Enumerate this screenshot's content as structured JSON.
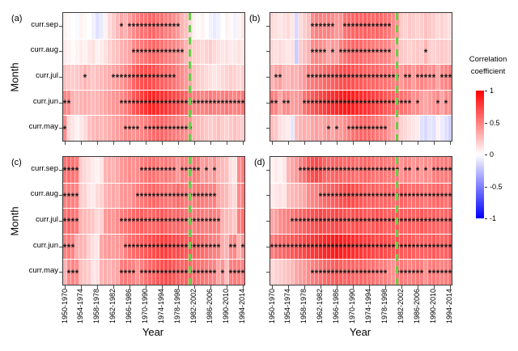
{
  "chart_data": {
    "type": "heatmap",
    "xlabel": "Year",
    "ylabel": "Month",
    "y_categories": [
      "curr.sep",
      "curr.aug",
      "curr.jul",
      "curr.jun",
      "curr.may"
    ],
    "n_cols": 45,
    "x_tick_cols": [
      0,
      4,
      8,
      12,
      16,
      20,
      24,
      28,
      32,
      36,
      40,
      44
    ],
    "x_tick_labels": [
      "1950-1970",
      "1954-1974",
      "1958-1978",
      "1962-1982",
      "1966-1986",
      "1970-1990",
      "1974-1994",
      "1978-1998",
      "1982-2002",
      "1986-2006",
      "1990-2010",
      "1994-2014"
    ],
    "value_range": [
      -1,
      1
    ],
    "sig_marker": "*",
    "highlight_line": {
      "col": 31.5,
      "color": "#67CE48",
      "style": "dashed"
    },
    "colorbar": {
      "title_line1": "Correlation",
      "title_line2": "coefficient",
      "tick_labels": [
        "1",
        "0.5",
        "0",
        "-0.5",
        "-1"
      ],
      "tick_values": [
        1,
        0.5,
        0,
        -0.5,
        -1
      ],
      "top_color": "#FF0000",
      "mid_color": "#FFFFFF",
      "bottom_color": "#0000FF"
    },
    "panels": [
      {
        "label": "(a)",
        "rows": [
          [
            0.05,
            0.02,
            0.0,
            -0.02,
            0.05,
            0.02,
            0.0,
            -0.05,
            -0.12,
            -0.08,
            0.05,
            0.15,
            0.2,
            0.28,
            0.35,
            0.3,
            0.38,
            0.45,
            0.5,
            0.55,
            0.55,
            0.6,
            0.6,
            0.55,
            0.55,
            0.5,
            0.5,
            0.45,
            0.4,
            0.3,
            0.25,
            0.15,
            0.05,
            0.02,
            0.05,
            0.0,
            -0.05,
            -0.08,
            -0.05,
            0.0,
            0.05,
            0.02,
            -0.05,
            0.05,
            0.1
          ],
          [
            0.08,
            0.05,
            0.02,
            0.05,
            0.08,
            0.05,
            0.1,
            0.12,
            0.05,
            0.08,
            0.12,
            0.18,
            0.22,
            0.25,
            0.3,
            0.32,
            0.35,
            0.45,
            0.5,
            0.52,
            0.55,
            0.58,
            0.6,
            0.58,
            0.55,
            0.52,
            0.5,
            0.48,
            0.45,
            0.38,
            0.3,
            0.25,
            0.2,
            0.18,
            0.15,
            0.18,
            0.2,
            0.15,
            0.12,
            0.1,
            0.12,
            0.08,
            0.1,
            0.12,
            0.1
          ],
          [
            0.25,
            0.22,
            0.2,
            0.22,
            0.25,
            0.3,
            0.25,
            0.22,
            0.25,
            0.28,
            0.3,
            0.32,
            0.35,
            0.38,
            0.4,
            0.45,
            0.5,
            0.6,
            0.65,
            0.68,
            0.7,
            0.7,
            0.68,
            0.65,
            0.62,
            0.6,
            0.58,
            0.55,
            0.5,
            0.45,
            0.4,
            0.35,
            0.25,
            0.2,
            0.18,
            0.15,
            0.12,
            0.1,
            0.12,
            0.15,
            0.18,
            0.2,
            0.18,
            0.15,
            0.18
          ],
          [
            0.48,
            0.45,
            0.3,
            0.28,
            0.3,
            0.32,
            0.3,
            0.28,
            0.3,
            0.32,
            0.35,
            0.38,
            0.4,
            0.42,
            0.45,
            0.5,
            0.55,
            0.65,
            0.7,
            0.75,
            0.8,
            0.85,
            0.85,
            0.82,
            0.8,
            0.78,
            0.75,
            0.72,
            0.7,
            0.65,
            0.6,
            0.55,
            0.5,
            0.5,
            0.48,
            0.5,
            0.52,
            0.5,
            0.48,
            0.5,
            0.52,
            0.5,
            0.48,
            0.5,
            0.52
          ],
          [
            0.45,
            0.15,
            0.1,
            0.05,
            0.1,
            0.15,
            0.25,
            0.28,
            0.3,
            0.28,
            0.3,
            0.32,
            0.35,
            0.38,
            0.4,
            0.45,
            0.45,
            0.42,
            0.45,
            0.48,
            0.5,
            0.55,
            0.58,
            0.6,
            0.6,
            0.58,
            0.55,
            0.52,
            0.5,
            0.48,
            0.45,
            0.42,
            0.3,
            0.28,
            0.25,
            0.22,
            0.2,
            0.22,
            0.25,
            0.2,
            0.18,
            0.22,
            0.25,
            0.22,
            0.2
          ]
        ],
        "sig_stars": [
          "14,16-28",
          "17-29",
          "5,12-27",
          "0-1,14-44",
          "0,15-18,20-31"
        ]
      },
      {
        "label": "(b)",
        "rows": [
          [
            0.15,
            0.12,
            0.1,
            0.12,
            0.15,
            0.1,
            -0.15,
            0.15,
            0.2,
            0.25,
            0.45,
            0.5,
            0.5,
            0.48,
            0.5,
            0.45,
            0.4,
            0.42,
            0.55,
            0.58,
            0.6,
            0.62,
            0.6,
            0.62,
            0.6,
            0.58,
            0.6,
            0.58,
            0.55,
            0.52,
            0.45,
            0.4,
            0.2,
            0.18,
            0.22,
            0.2,
            0.18,
            0.2,
            0.25,
            0.22,
            0.2,
            0.15,
            0.18,
            0.15,
            0.12
          ],
          [
            0.15,
            0.12,
            0.15,
            0.12,
            0.1,
            0.12,
            -0.2,
            0.2,
            0.25,
            0.3,
            0.45,
            0.48,
            0.45,
            0.42,
            0.35,
            0.4,
            0.38,
            0.5,
            0.55,
            0.58,
            0.6,
            0.6,
            0.58,
            0.55,
            0.55,
            0.52,
            0.5,
            0.5,
            0.48,
            0.45,
            0.38,
            0.32,
            0.22,
            0.2,
            0.18,
            0.2,
            0.22,
            0.2,
            0.3,
            0.2,
            0.18,
            0.2,
            0.22,
            0.2,
            0.18
          ],
          [
            0.3,
            0.35,
            0.38,
            0.3,
            0.28,
            0.32,
            0.3,
            0.35,
            0.4,
            0.5,
            0.52,
            0.55,
            0.55,
            0.58,
            0.6,
            0.62,
            0.65,
            0.68,
            0.7,
            0.7,
            0.68,
            0.65,
            0.65,
            0.62,
            0.6,
            0.6,
            0.58,
            0.55,
            0.55,
            0.52,
            0.5,
            0.5,
            0.4,
            0.45,
            0.45,
            0.38,
            0.45,
            0.48,
            0.45,
            0.42,
            0.45,
            0.35,
            0.45,
            0.48,
            0.5
          ],
          [
            0.5,
            0.48,
            0.35,
            0.45,
            0.45,
            0.38,
            0.4,
            0.42,
            0.55,
            0.6,
            0.65,
            0.7,
            0.72,
            0.75,
            0.8,
            0.82,
            0.85,
            0.88,
            0.9,
            0.9,
            0.88,
            0.85,
            0.82,
            0.8,
            0.78,
            0.75,
            0.72,
            0.7,
            0.65,
            0.62,
            0.6,
            0.58,
            0.55,
            0.52,
            0.5,
            0.42,
            0.45,
            0.38,
            0.35,
            0.38,
            0.42,
            0.45,
            0.35,
            0.45,
            0.42
          ],
          [
            0.25,
            0.22,
            0.12,
            0.1,
            0.08,
            -0.1,
            0.25,
            0.3,
            0.32,
            0.3,
            0.35,
            0.38,
            0.35,
            0.38,
            0.42,
            0.35,
            0.42,
            0.4,
            0.45,
            0.5,
            0.55,
            0.58,
            0.6,
            0.6,
            0.58,
            0.55,
            0.52,
            0.5,
            0.48,
            0.4,
            0.35,
            0.3,
            0.18,
            0.15,
            0.12,
            0.1,
            0.08,
            -0.12,
            -0.15,
            -0.1,
            -0.12,
            0.05,
            -0.08,
            -0.12,
            -0.18
          ]
        ],
        "sig_stars": [
          "10-15,18-29",
          "10-13,15,17-29,38",
          "1-2,9-31,33-34,36-40,42-44",
          "0-1,3-4,8-34,36,41,43",
          "14,16,19-28"
        ]
      },
      {
        "label": "(c)",
        "rows": [
          [
            0.55,
            0.58,
            0.55,
            0.52,
            0.2,
            0.15,
            0.12,
            0.08,
            0.05,
            0.1,
            0.3,
            0.32,
            0.3,
            0.35,
            0.4,
            0.42,
            0.45,
            0.42,
            0.45,
            0.5,
            0.52,
            0.55,
            0.55,
            0.52,
            0.5,
            0.52,
            0.5,
            0.48,
            0.4,
            0.5,
            0.48,
            0.5,
            0.52,
            0.5,
            0.38,
            0.42,
            0.35,
            0.42,
            0.3,
            0.28,
            0.25,
            0.12,
            0.1,
            0.45,
            0.5
          ],
          [
            0.5,
            0.52,
            0.5,
            0.48,
            0.2,
            0.18,
            0.1,
            0.08,
            0.15,
            0.18,
            0.3,
            0.32,
            0.35,
            0.32,
            0.4,
            0.42,
            0.4,
            0.45,
            0.5,
            0.52,
            0.55,
            0.58,
            0.6,
            0.58,
            0.55,
            0.55,
            0.52,
            0.55,
            0.58,
            0.55,
            0.52,
            0.5,
            0.52,
            0.55,
            0.52,
            0.5,
            0.48,
            0.5,
            0.35,
            0.3,
            0.28,
            0.18,
            0.15,
            0.45,
            0.5
          ],
          [
            0.55,
            0.58,
            0.55,
            0.52,
            0.3,
            0.28,
            0.25,
            0.22,
            0.15,
            0.18,
            0.4,
            0.42,
            0.4,
            0.45,
            0.5,
            0.52,
            0.55,
            0.58,
            0.6,
            0.62,
            0.6,
            0.58,
            0.6,
            0.62,
            0.65,
            0.62,
            0.6,
            0.58,
            0.6,
            0.58,
            0.55,
            0.55,
            0.52,
            0.55,
            0.52,
            0.5,
            0.52,
            0.5,
            0.48,
            0.3,
            0.28,
            0.25,
            0.22,
            0.5,
            0.55
          ],
          [
            0.5,
            0.52,
            0.48,
            0.32,
            0.3,
            0.28,
            0.18,
            0.12,
            0.1,
            0.35,
            0.38,
            0.4,
            0.38,
            0.4,
            0.42,
            0.5,
            0.55,
            0.58,
            0.6,
            0.62,
            0.65,
            0.68,
            0.7,
            0.72,
            0.75,
            0.75,
            0.72,
            0.7,
            0.7,
            0.68,
            0.65,
            0.65,
            0.62,
            0.6,
            0.58,
            0.55,
            0.52,
            0.5,
            0.48,
            0.32,
            0.3,
            0.45,
            0.48,
            0.3,
            0.42
          ],
          [
            0.3,
            0.45,
            0.48,
            0.45,
            0.25,
            0.22,
            0.2,
            0.1,
            0.12,
            0.3,
            0.32,
            0.3,
            0.32,
            0.35,
            0.5,
            0.52,
            0.5,
            0.48,
            0.42,
            0.5,
            0.55,
            0.58,
            0.6,
            0.65,
            0.68,
            0.7,
            0.68,
            0.65,
            0.62,
            0.6,
            0.62,
            0.6,
            0.58,
            0.55,
            0.55,
            0.52,
            0.5,
            0.48,
            0.35,
            0.42,
            0.25,
            0.5,
            0.52,
            0.5,
            0.48
          ]
        ],
        "sig_stars": [
          "0-3,19-27,29-33,35,37",
          "0-3,18-37",
          "0-3,14-38",
          "0-2,15-38,41-42,44",
          "1-3,14-17,19-37,39,41-44"
        ]
      },
      {
        "label": "(d)",
        "rows": [
          [
            0.05,
            0.08,
            0.05,
            0.1,
            0.3,
            0.35,
            0.4,
            0.5,
            0.55,
            0.65,
            0.7,
            0.72,
            0.68,
            0.6,
            0.58,
            0.6,
            0.62,
            0.6,
            0.58,
            0.6,
            0.58,
            0.55,
            0.58,
            0.6,
            0.58,
            0.55,
            0.52,
            0.55,
            0.52,
            0.5,
            0.52,
            0.5,
            0.42,
            0.48,
            0.45,
            0.4,
            0.45,
            0.4,
            0.45,
            0.42,
            0.5,
            0.52,
            0.5,
            0.52,
            0.5
          ],
          [
            0.08,
            0.1,
            0.12,
            0.1,
            0.25,
            0.28,
            0.3,
            0.32,
            0.35,
            0.45,
            0.48,
            0.5,
            0.55,
            0.58,
            0.6,
            0.62,
            0.65,
            0.68,
            0.7,
            0.72,
            0.7,
            0.68,
            0.65,
            0.62,
            0.6,
            0.62,
            0.6,
            0.58,
            0.6,
            0.58,
            0.56,
            0.58,
            0.6,
            0.58,
            0.55,
            0.56,
            0.58,
            0.55,
            0.52,
            0.55,
            0.58,
            0.6,
            0.58,
            0.55,
            0.58
          ],
          [
            0.35,
            0.38,
            0.45,
            0.48,
            0.5,
            0.52,
            0.58,
            0.6,
            0.62,
            0.65,
            0.68,
            0.7,
            0.72,
            0.7,
            0.68,
            0.7,
            0.72,
            0.7,
            0.68,
            0.65,
            0.68,
            0.7,
            0.68,
            0.65,
            0.62,
            0.65,
            0.68,
            0.65,
            0.62,
            0.6,
            0.62,
            0.65,
            0.62,
            0.6,
            0.62,
            0.6,
            0.62,
            0.65,
            0.62,
            0.6,
            0.62,
            0.6,
            0.58,
            0.6,
            0.62
          ],
          [
            0.5,
            0.55,
            0.58,
            0.6,
            0.62,
            0.65,
            0.68,
            0.7,
            0.72,
            0.75,
            0.78,
            0.8,
            0.82,
            0.85,
            0.85,
            0.88,
            0.9,
            0.88,
            0.85,
            0.85,
            0.82,
            0.8,
            0.78,
            0.75,
            0.75,
            0.72,
            0.7,
            0.72,
            0.7,
            0.68,
            0.65,
            0.68,
            0.65,
            0.62,
            0.65,
            0.62,
            0.6,
            0.62,
            0.6,
            0.62,
            0.65,
            0.62,
            0.6,
            0.62,
            0.65
          ],
          [
            0.15,
            0.18,
            0.2,
            0.22,
            0.25,
            0.28,
            0.35,
            0.38,
            0.4,
            0.45,
            0.5,
            0.52,
            0.55,
            0.58,
            0.6,
            0.62,
            0.65,
            0.62,
            0.6,
            0.62,
            0.6,
            0.58,
            0.6,
            0.58,
            0.55,
            0.55,
            0.52,
            0.5,
            0.5,
            0.45,
            0.42,
            0.5,
            0.52,
            0.5,
            0.48,
            0.5,
            0.52,
            0.5,
            0.42,
            0.5,
            0.52,
            0.5,
            0.48,
            0.5,
            0.52
          ]
        ],
        "sig_stars": [
          "7-31,33-34,36,38,40-44",
          "12-44",
          "5-44",
          "0-44",
          "10-28,31-37,39-44"
        ]
      }
    ]
  }
}
